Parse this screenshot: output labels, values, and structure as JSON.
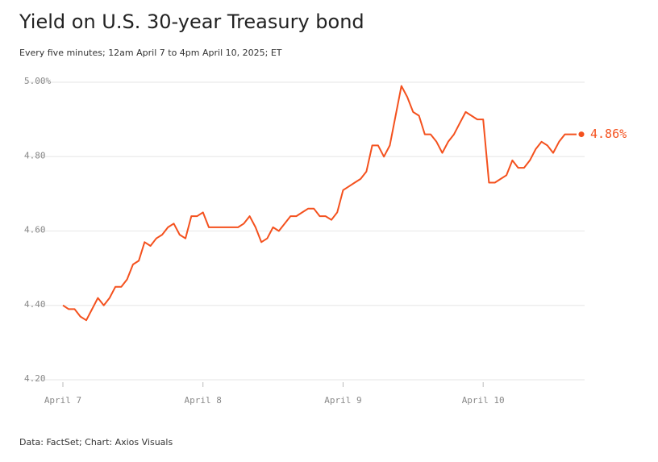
{
  "chart_data": {
    "type": "line",
    "title": "Yield on U.S. 30-year Treasury bond",
    "subtitle": "Every five minutes; 12am April 7 to 4pm April 10, 2025; ET",
    "source": "Data: FactSet; Chart: Axios Visuals",
    "annotation": "4.86%",
    "x": [
      0,
      1,
      2,
      3,
      4,
      5,
      6,
      7,
      8,
      9,
      10,
      11,
      12,
      13,
      14,
      15,
      16,
      17,
      18,
      19,
      20,
      21,
      22,
      23,
      24,
      25,
      26,
      27,
      28,
      29,
      30,
      31,
      32,
      33,
      34,
      35,
      36,
      37,
      38,
      39,
      40,
      41,
      42,
      43,
      44,
      45,
      46,
      47,
      48,
      49,
      50,
      51,
      52,
      53,
      54,
      55,
      56,
      57,
      58,
      59,
      60,
      61,
      62,
      63,
      64,
      65,
      66,
      67,
      68,
      69,
      70,
      71,
      72,
      73,
      74,
      75,
      76,
      77,
      78,
      79,
      80,
      81,
      82,
      83,
      84,
      85,
      86,
      87,
      88
    ],
    "series": [
      {
        "name": "Yield",
        "color": "#f4511e",
        "values": [
          4.4,
          4.39,
          4.39,
          4.37,
          4.36,
          4.39,
          4.42,
          4.4,
          4.42,
          4.45,
          4.45,
          4.47,
          4.51,
          4.52,
          4.57,
          4.56,
          4.58,
          4.59,
          4.61,
          4.62,
          4.59,
          4.58,
          4.64,
          4.64,
          4.65,
          4.61,
          4.61,
          4.61,
          4.61,
          4.61,
          4.61,
          4.62,
          4.64,
          4.61,
          4.57,
          4.58,
          4.61,
          4.6,
          4.62,
          4.64,
          4.64,
          4.65,
          4.66,
          4.66,
          4.64,
          4.64,
          4.63,
          4.65,
          4.71,
          4.72,
          4.73,
          4.74,
          4.76,
          4.83,
          4.83,
          4.8,
          4.83,
          4.91,
          4.99,
          4.96,
          4.92,
          4.91,
          4.86,
          4.86,
          4.84,
          4.81,
          4.84,
          4.86,
          4.89,
          4.92,
          4.91,
          4.9,
          4.9,
          4.73,
          4.73,
          4.74,
          4.75,
          4.79,
          4.77,
          4.77,
          4.79,
          4.82,
          4.84,
          4.83,
          4.81,
          4.84,
          4.86,
          4.86,
          4.86
        ]
      }
    ],
    "xlim": [
      0,
      88
    ],
    "xticks": [
      {
        "value": 0,
        "label": "April 7"
      },
      {
        "value": 24,
        "label": "April 8"
      },
      {
        "value": 48,
        "label": "April 9"
      },
      {
        "value": 72,
        "label": "April 10"
      }
    ],
    "ylim": [
      4.2,
      5.0
    ],
    "yticks": [
      {
        "value": 4.2,
        "label": "4.20"
      },
      {
        "value": 4.4,
        "label": "4.40"
      },
      {
        "value": 4.6,
        "label": "4.60"
      },
      {
        "value": 4.8,
        "label": "4.80"
      },
      {
        "value": 5.0,
        "label": "5.00%"
      }
    ],
    "grid": true
  }
}
